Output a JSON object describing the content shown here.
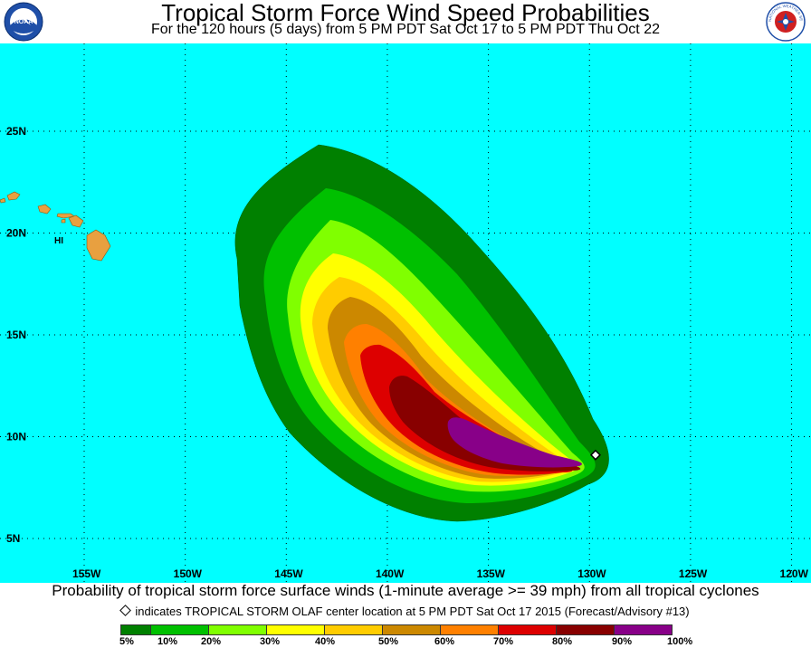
{
  "header": {
    "title": "Tropical Storm Force Wind Speed Probabilities",
    "subtitle": "For the 120 hours (5 days) from 5 PM PDT Sat Oct 17 to 5 PM PDT Thu Oct 22",
    "left_logo_text": "NOAA",
    "right_logo_text": "NATIONAL WEATHER SERVICE"
  },
  "map": {
    "background_color": "#00ffff",
    "land_color": "#e8a040",
    "grid_style": "dotted",
    "region_label": "HI",
    "lat_labels": [
      "25N",
      "20N",
      "15N",
      "10N",
      "5N"
    ],
    "lon_labels": [
      "155W",
      "150W",
      "145W",
      "140W",
      "135W",
      "130W",
      "125W",
      "120W"
    ],
    "center_marker": {
      "lon": -129.7,
      "lat": 9.1
    }
  },
  "legend": {
    "bins": [
      {
        "color": "#008000"
      },
      {
        "color": "#00c000"
      },
      {
        "color": "#80ff00"
      },
      {
        "color": "#ffff00"
      },
      {
        "color": "#ffcc00"
      },
      {
        "color": "#cc8800"
      },
      {
        "color": "#ff8000"
      },
      {
        "color": "#dd0000"
      },
      {
        "color": "#880000"
      },
      {
        "color": "#880088"
      }
    ],
    "labels": [
      "5%",
      "10%",
      "20%",
      "30%",
      "40%",
      "50%",
      "60%",
      "70%",
      "80%",
      "90%",
      "100%"
    ]
  },
  "footer": {
    "line1": "Probability of tropical storm force surface winds (1-minute average >= 39 mph) from all tropical cyclones",
    "line2": "indicates TROPICAL STORM OLAF center location at 5 PM PDT Sat Oct 17 2015 (Forecast/Advisory #13)"
  }
}
